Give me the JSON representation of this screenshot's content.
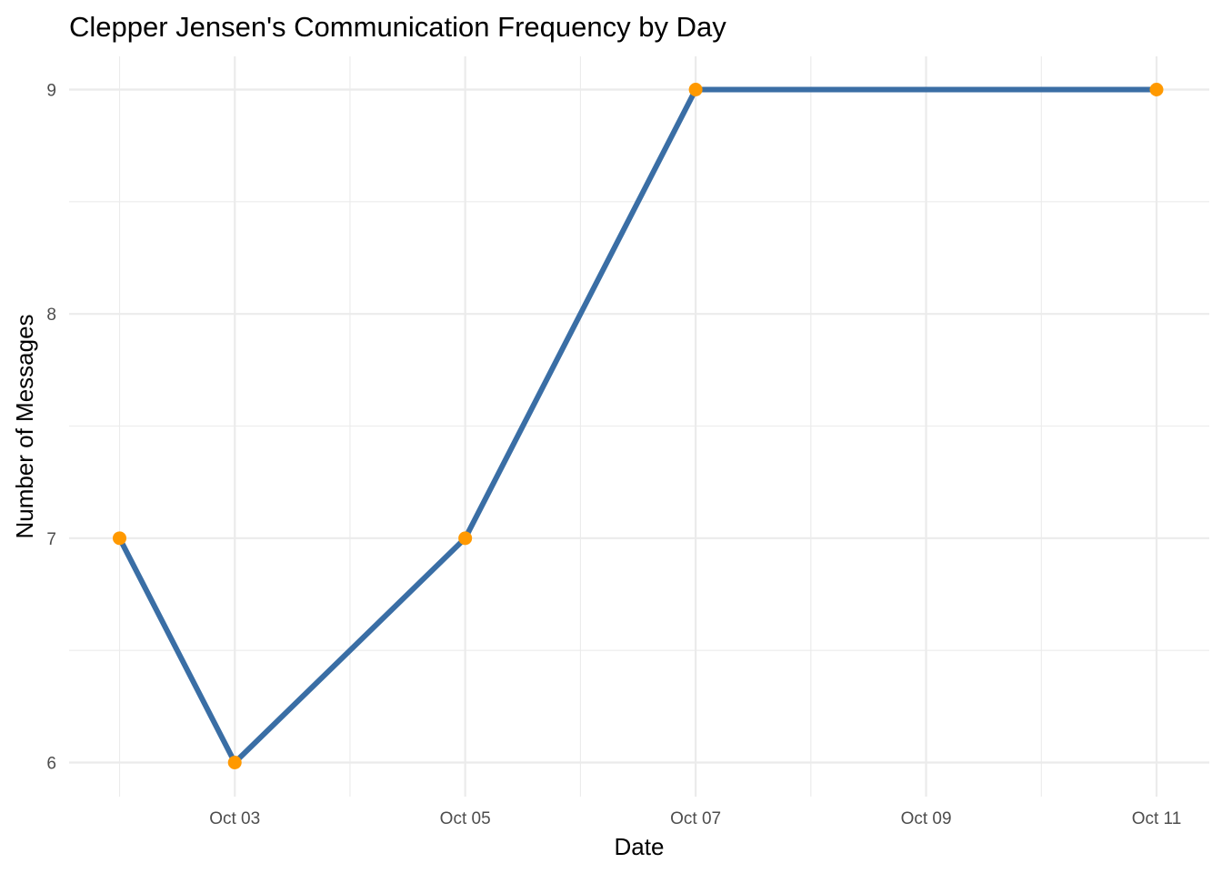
{
  "chart_data": {
    "type": "line",
    "title": "Clepper Jensen's Communication Frequency by Day",
    "xlabel": "Date",
    "ylabel": "Number of Messages",
    "x": [
      "Oct 02",
      "Oct 03",
      "Oct 05",
      "Oct 07",
      "Oct 11"
    ],
    "x_dates": [
      "2023-10-02",
      "2023-10-03",
      "2023-10-05",
      "2023-10-07",
      "2023-10-11"
    ],
    "values": [
      7,
      6,
      7,
      9,
      9
    ],
    "x_ticks": [
      "Oct 03",
      "Oct 05",
      "Oct 07",
      "Oct 09",
      "Oct 11"
    ],
    "x_tick_dates": [
      "2023-10-03",
      "2023-10-05",
      "2023-10-07",
      "2023-10-09",
      "2023-10-11"
    ],
    "y_ticks": [
      "6",
      "7",
      "8",
      "9"
    ],
    "y_tick_values": [
      6,
      7,
      8,
      9
    ],
    "xlim": [
      "2023-10-01",
      "2023-10-12"
    ],
    "ylim": [
      6,
      9
    ],
    "grid": true,
    "legend": "none",
    "colors": {
      "line": "#3a6ea5",
      "point": "#ff9900",
      "grid": "#ebebeb"
    }
  }
}
